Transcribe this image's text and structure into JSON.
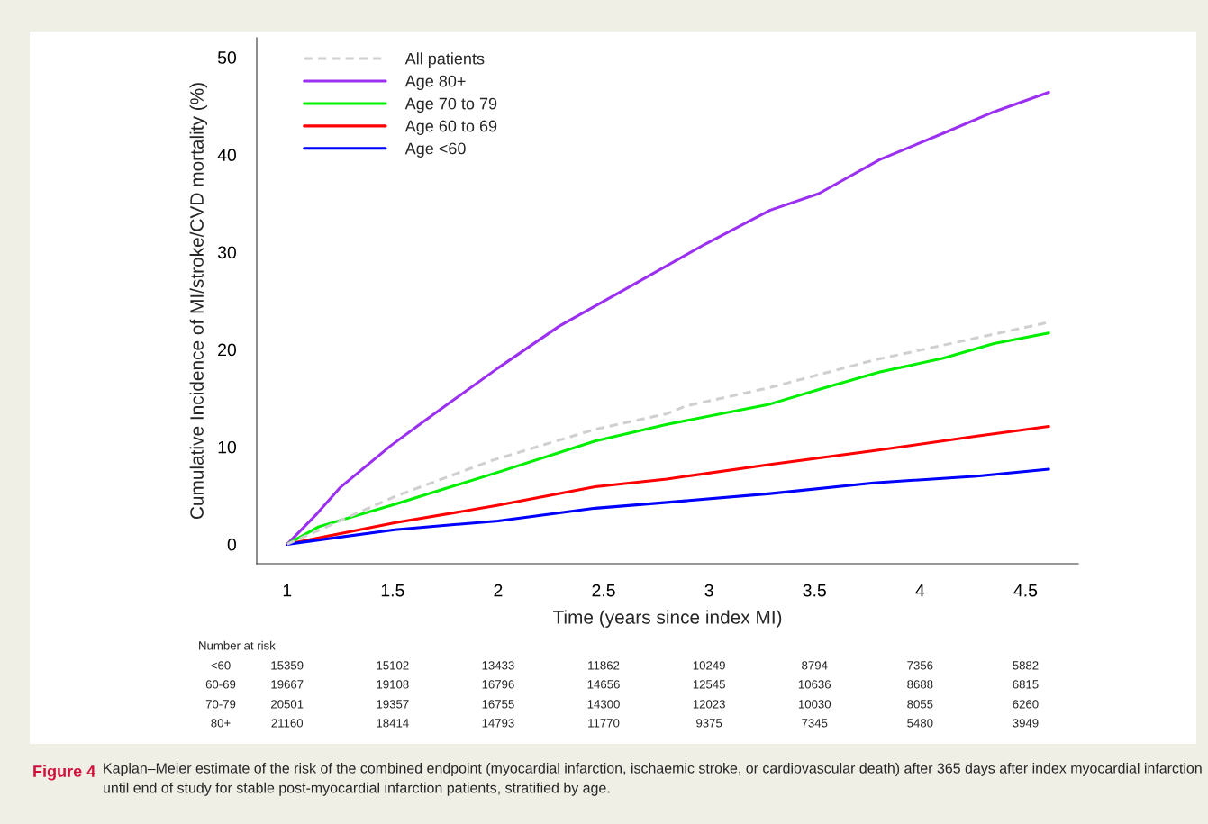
{
  "chart_data": {
    "type": "line",
    "xlabel": "Time (years since index MI)",
    "ylabel": "Cumulative Incidence of MI/stroke/CVD mortality (%)",
    "xlim": [
      0.856,
      4.75
    ],
    "ylim": [
      -2,
      52
    ],
    "xticks": [
      1,
      1.5,
      2,
      2.5,
      3,
      3.5,
      4,
      4.5
    ],
    "yticks": [
      0,
      10,
      20,
      30,
      40,
      50
    ],
    "grid": false,
    "legend": "top left",
    "series": [
      {
        "name": "All patients",
        "color": "#d0d0d0",
        "line_style": "dashed",
        "x": [
          1,
          1.51,
          1.97,
          2.46,
          2.8,
          2.89,
          3.29,
          3.78,
          4.27,
          4.61
        ],
        "values": [
          0,
          4.9,
          8.6,
          11.8,
          13.4,
          14.2,
          16.1,
          18.9,
          21.2,
          22.8
        ]
      },
      {
        "name": "Age 80+",
        "color": "#9b30f0",
        "line_style": "solid",
        "x": [
          1,
          1.14,
          1.25,
          1.49,
          1.64,
          2.0,
          2.29,
          2.62,
          2.89,
          2.98,
          3.29,
          3.52,
          3.81,
          4.11,
          4.35,
          4.61
        ],
        "values": [
          0,
          3.1,
          5.8,
          10.1,
          12.5,
          18.1,
          22.4,
          26.4,
          29.7,
          30.8,
          34.3,
          36.0,
          39.5,
          42.2,
          44.4,
          46.4
        ]
      },
      {
        "name": "Age 70 to 79",
        "color": "#00ee00",
        "line_style": "solid",
        "x": [
          1,
          1.15,
          1.51,
          2.0,
          2.46,
          2.8,
          3.29,
          3.52,
          3.81,
          4.11,
          4.35,
          4.61
        ],
        "values": [
          0,
          1.8,
          4.1,
          7.4,
          10.6,
          12.3,
          14.4,
          15.9,
          17.7,
          19.1,
          20.6,
          21.7
        ]
      },
      {
        "name": "Age 60 to 69",
        "color": "#ff0000",
        "line_style": "solid",
        "x": [
          1,
          1.51,
          2.0,
          2.46,
          2.8,
          3.29,
          3.78,
          4.27,
          4.61
        ],
        "values": [
          0,
          2.2,
          4.0,
          5.9,
          6.7,
          8.2,
          9.6,
          11.1,
          12.1
        ]
      },
      {
        "name": "Age <60",
        "color": "#0000ff",
        "line_style": "solid",
        "x": [
          1,
          1.51,
          2.0,
          2.46,
          2.8,
          3.29,
          3.78,
          4.27,
          4.61
        ],
        "values": [
          0,
          1.5,
          2.4,
          3.7,
          4.3,
          5.2,
          6.3,
          7.0,
          7.7
        ]
      }
    ],
    "annotations": [
      "Number at risk",
      "<60",
      "15359",
      "15102",
      "13433",
      "11862",
      "10249",
      "8794",
      "7356",
      "5882",
      "60-69",
      "19667",
      "19108",
      "16796",
      "14656",
      "12545",
      "10636",
      "8688",
      "6815",
      "70-79",
      "20501",
      "19357",
      "16755",
      "14300",
      "12023",
      "10030",
      "8055",
      "6260",
      "80+",
      "21160",
      "18414",
      "14793",
      "11770",
      "9375",
      "7345",
      "5480",
      "3949",
      "Figure 4",
      "Kaplan–Meier estimate of the risk of the combined endpoint (myocardial infarction, ischaemic stroke, or cardiovascular death) after 365 days after index myocardial infarction until end of study for stable post-myocardial infarction patients, stratified by age."
    ]
  }
}
